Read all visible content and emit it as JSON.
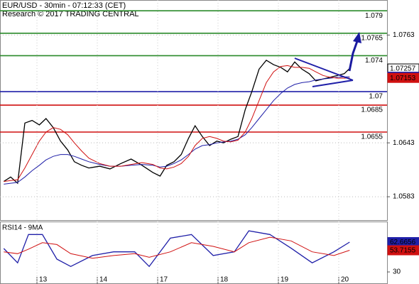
{
  "chart_data": [
    {
      "type": "line",
      "title": "EUR/USD - 30min - 07:12:33 (CET)",
      "subtitle": "Research © 2017 TRADING CENTRAL",
      "xlim": [
        0.388,
        6.8
      ],
      "ylim": [
        1.0557,
        1.0802
      ],
      "yticks": [
        1.0763,
        1.0643,
        1.0583
      ],
      "x": [
        0.45,
        0.565,
        0.68,
        0.8,
        0.92,
        1.04,
        1.15,
        1.27,
        1.39,
        1.51,
        1.62,
        1.74,
        1.86,
        2.04,
        2.21,
        2.39,
        2.56,
        2.74,
        2.92,
        3.04,
        3.15,
        3.27,
        3.39,
        3.51,
        3.62,
        3.74,
        3.86,
        3.98,
        4.09,
        4.21,
        4.33,
        4.45,
        4.56,
        4.68,
        4.8,
        4.92,
        5.04,
        5.15,
        5.27,
        5.39,
        5.51,
        5.62,
        5.74,
        5.86,
        5.98,
        6.09,
        6.18
      ],
      "series": [
        {
          "color": "#000000",
          "values": [
            1.06,
            1.0605,
            1.0598,
            1.0665,
            1.0668,
            1.0663,
            1.067,
            1.066,
            1.0645,
            1.0635,
            1.0622,
            1.0618,
            1.0615,
            1.0617,
            1.0614,
            1.062,
            1.0625,
            1.0618,
            1.061,
            1.0606,
            1.0618,
            1.0622,
            1.063,
            1.0648,
            1.0662,
            1.065,
            1.064,
            1.0645,
            1.0643,
            1.0647,
            1.065,
            1.068,
            1.07,
            1.0725,
            1.0735,
            1.073,
            1.0727,
            1.0722,
            1.0733,
            1.0725,
            1.072,
            1.0712,
            1.0714,
            1.0716,
            1.0718,
            1.072,
            1.07257
          ]
        },
        {
          "color": "#1f1fa8",
          "values": [
            1.0597,
            1.0598,
            1.0599,
            1.0605,
            1.0612,
            1.0618,
            1.0624,
            1.0628,
            1.063,
            1.063,
            1.0628,
            1.0625,
            1.0622,
            1.0619,
            1.0617,
            1.0617,
            1.0618,
            1.0619,
            1.0618,
            1.0616,
            1.0617,
            1.062,
            1.0624,
            1.063,
            1.0636,
            1.064,
            1.0641,
            1.0643,
            1.0644,
            1.0645,
            1.0647,
            1.0652,
            1.066,
            1.067,
            1.068,
            1.069,
            1.0698,
            1.0704,
            1.0708,
            1.071,
            1.0711,
            1.0713,
            1.0714,
            1.0715,
            1.0716,
            1.07163,
            1.07166
          ]
        },
        {
          "color": "#d01010",
          "values": [
            1.06,
            1.0601,
            1.0602,
            1.0615,
            1.063,
            1.0645,
            1.0655,
            1.066,
            1.0658,
            1.0652,
            1.0643,
            1.0634,
            1.0626,
            1.062,
            1.0617,
            1.0617,
            1.0619,
            1.0621,
            1.0619,
            1.0615,
            1.0614,
            1.0616,
            1.062,
            1.0628,
            1.064,
            1.0648,
            1.065,
            1.0648,
            1.0645,
            1.0644,
            1.0646,
            1.0655,
            1.067,
            1.069,
            1.071,
            1.0722,
            1.0728,
            1.0729,
            1.0727,
            1.0727,
            1.0726,
            1.0722,
            1.0718,
            1.0716,
            1.0715,
            1.0715,
            1.07153
          ]
        }
      ],
      "levels": [
        {
          "value": 1.079,
          "color": "#2a8a2a"
        },
        {
          "value": 1.0765,
          "color": "#2a8a2a"
        },
        {
          "value": 1.074,
          "color": "#2a8a2a"
        },
        {
          "value": 1.07,
          "color": "#1f1fa8"
        },
        {
          "value": 1.0685,
          "color": "#d01010"
        },
        {
          "value": 1.0655,
          "color": "#d01010"
        }
      ]
    },
    {
      "type": "line",
      "title": "RSI14 - 9MA",
      "xlim": [
        0.388,
        6.8
      ],
      "ylim": [
        16.8,
        85.2
      ],
      "yticks": [
        30
      ],
      "xticks": [
        {
          "value": 1,
          "label": "13"
        },
        {
          "value": 2,
          "label": "14"
        },
        {
          "value": 3,
          "label": "17"
        },
        {
          "value": 4,
          "label": "18"
        },
        {
          "value": 5,
          "label": "19"
        },
        {
          "value": 6,
          "label": "20"
        }
      ],
      "x": [
        0.45,
        0.68,
        0.86,
        1.09,
        1.33,
        1.56,
        1.92,
        2.27,
        2.62,
        2.86,
        3.21,
        3.56,
        3.92,
        4.27,
        4.51,
        4.86,
        5.21,
        5.56,
        5.92,
        6.18
      ],
      "series": [
        {
          "color": "#1f1fa8",
          "values": [
            55.7,
            40,
            71,
            71,
            44,
            36,
            48,
            52,
            52,
            36,
            67,
            71,
            48,
            52,
            75,
            71,
            56,
            40,
            52,
            62.6656
          ]
        },
        {
          "color": "#d01010",
          "values": [
            52,
            50,
            55,
            62,
            60,
            50,
            45,
            48,
            50,
            46,
            52,
            62,
            58,
            52,
            62,
            68,
            64,
            52,
            48,
            53.7155
          ]
        }
      ]
    }
  ]
}
